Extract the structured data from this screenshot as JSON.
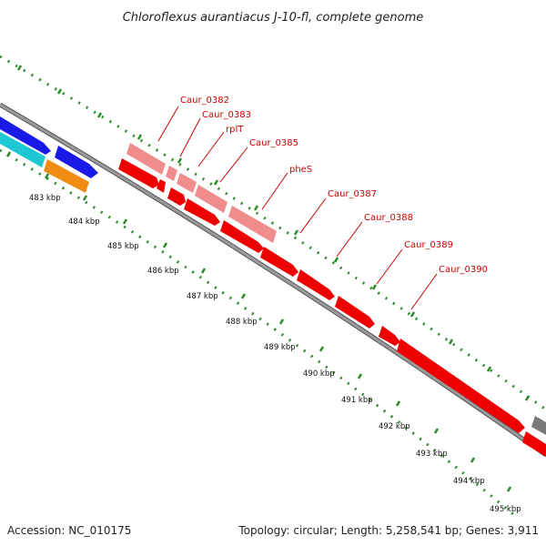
{
  "title": "Chloroflexus aurantiacus J-10-fl, complete genome",
  "footer": {
    "accession": "Accession: NC_010175",
    "summary": "Topology: circular; Length: 5,258,541 bp; Genes: 3,911"
  },
  "colors": {
    "backbone": "#808080",
    "tick": "#2a8a2a",
    "gene_forward": "#ee0000",
    "gene_highlight": "#f08c8c",
    "gene_blue": "#1a1ae6",
    "gene_cyan": "#1ec8d2",
    "gene_orange": "#f08c14",
    "label": "#cc0000"
  },
  "kbp_labels": [
    "483 kbp",
    "484 kbp",
    "485 kbp",
    "486 kbp",
    "487 kbp",
    "488 kbp",
    "489 kbp",
    "490 kbp",
    "491 kbp",
    "492 kbp",
    "493 kbp",
    "494 kbp",
    "495 kbp"
  ],
  "gene_labels": [
    "Caur_0382",
    "Caur_0383",
    "rplT",
    "Caur_0385",
    "pheS",
    "Caur_0387",
    "Caur_0388",
    "Caur_0389",
    "Caur_0390"
  ]
}
